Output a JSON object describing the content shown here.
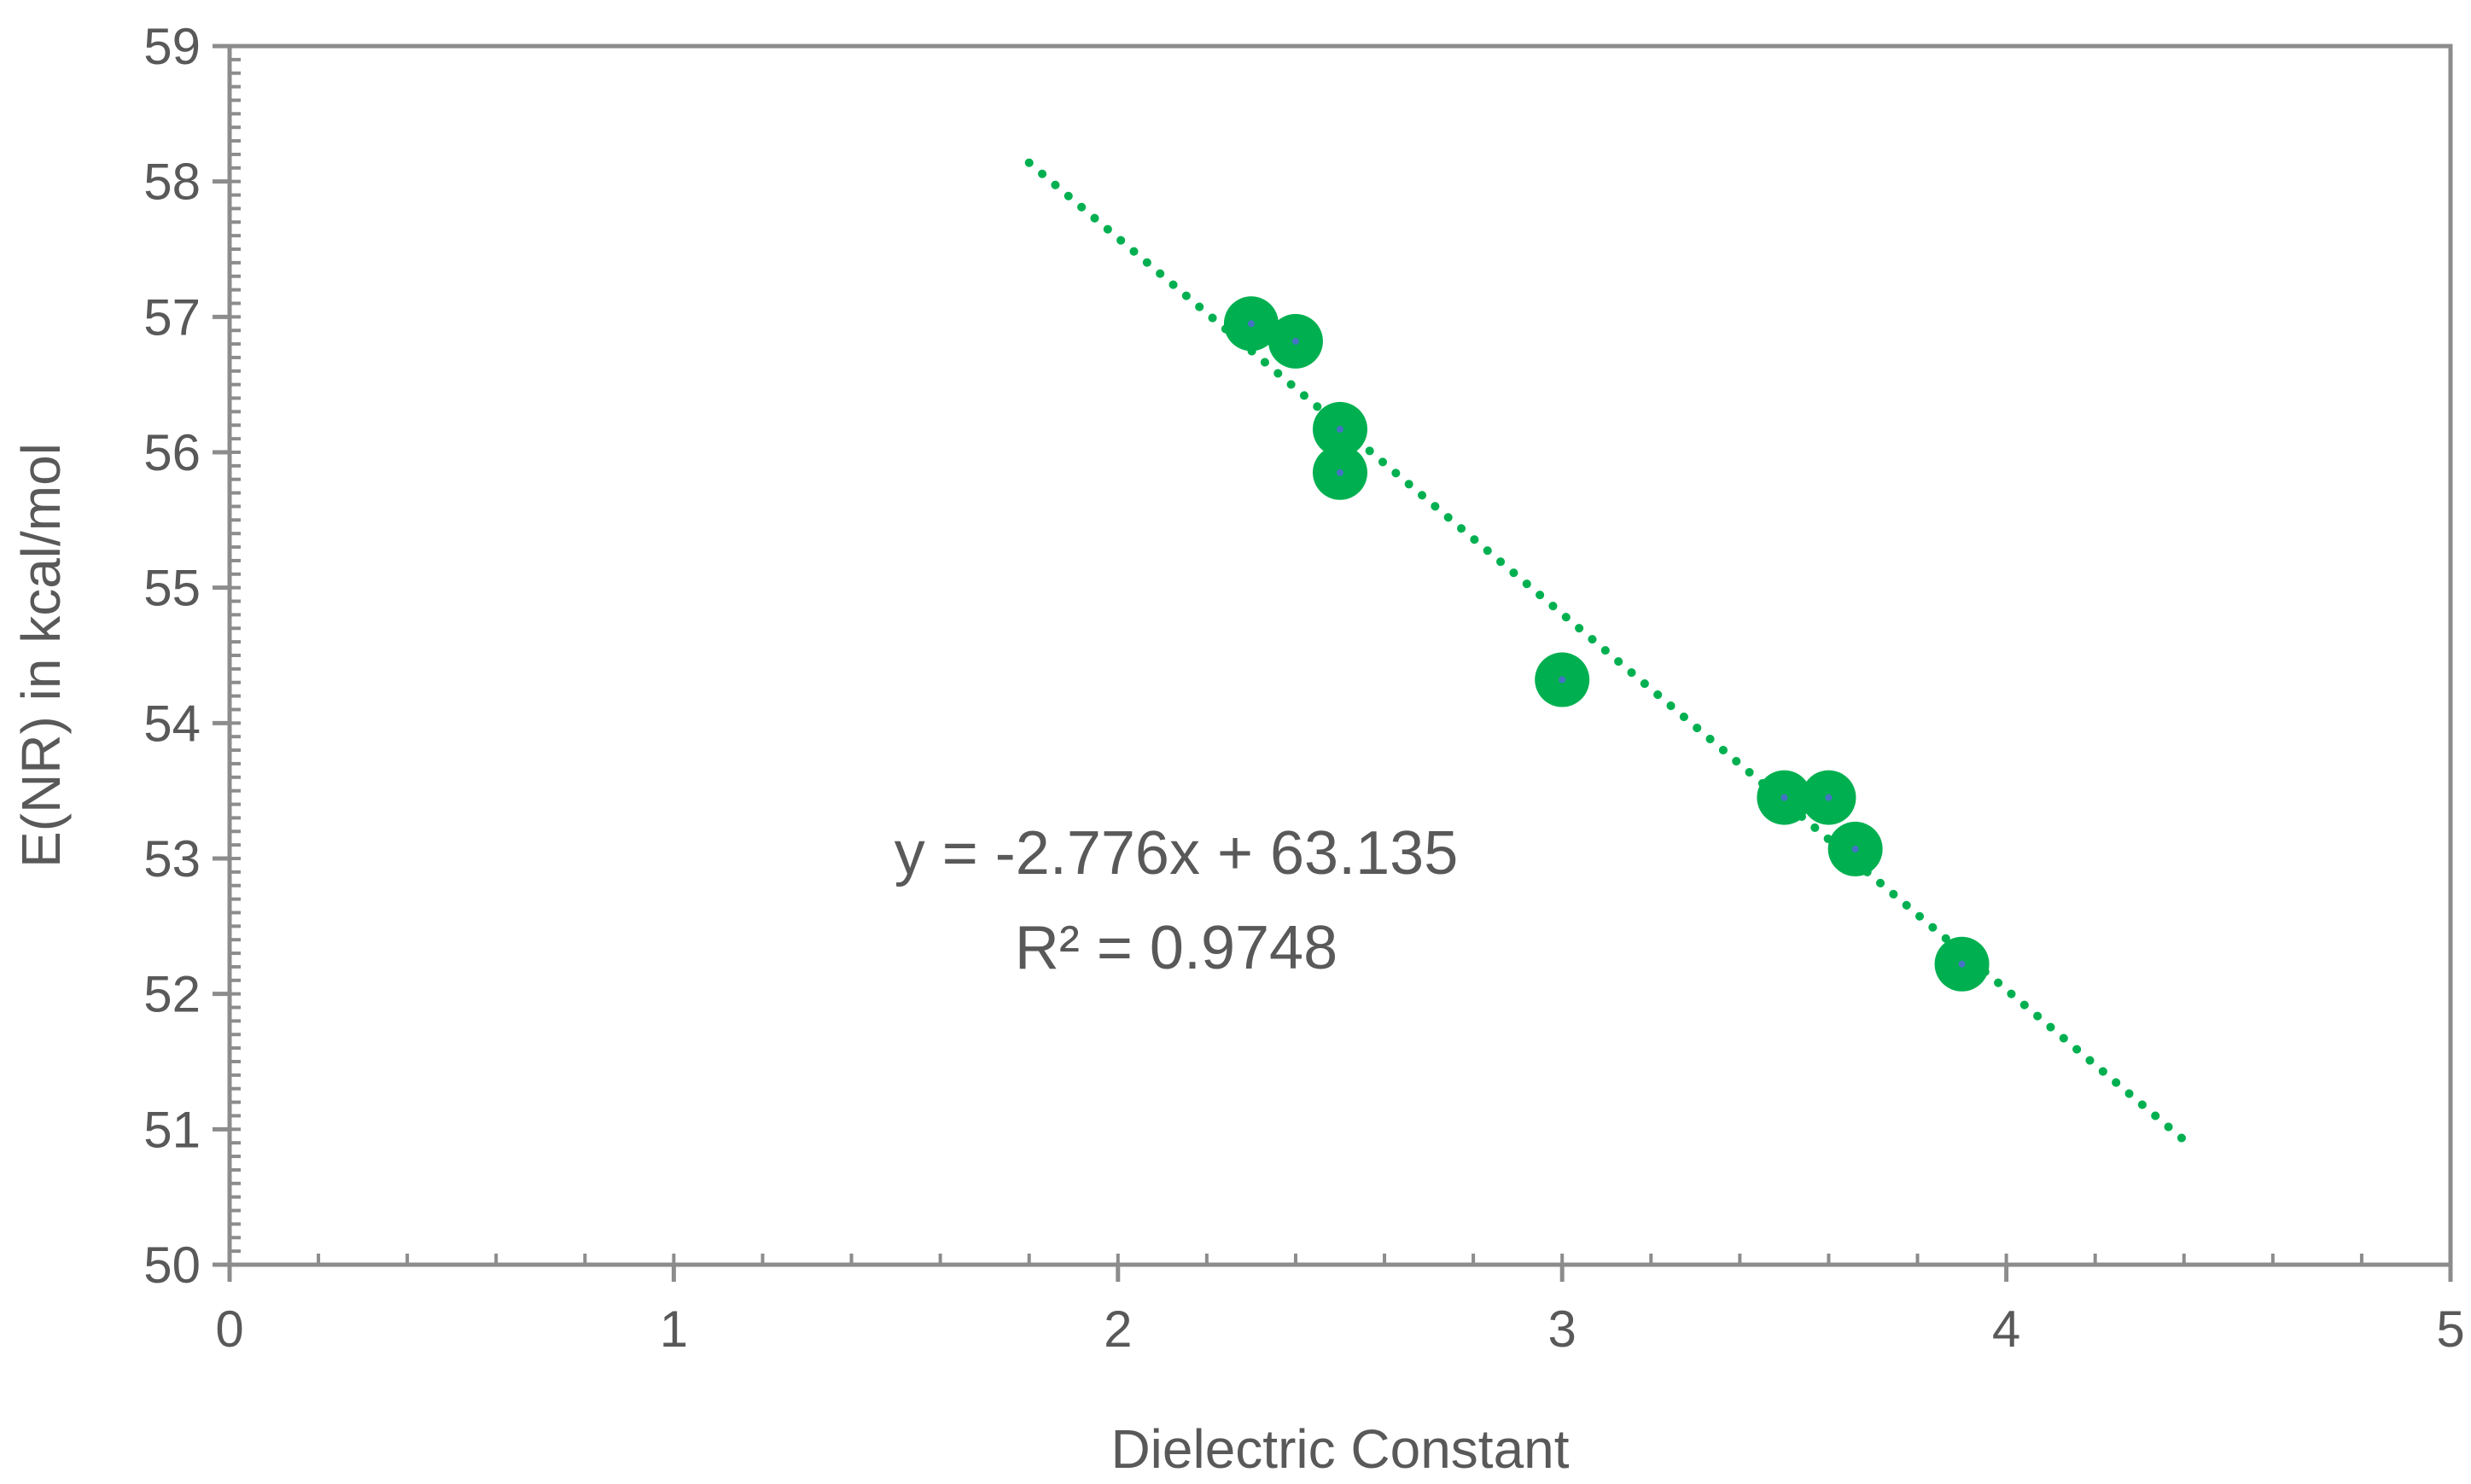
{
  "chart_data": {
    "type": "scatter",
    "title": "",
    "xlabel": "Dielectric Constant",
    "ylabel": "E(NR) in kcal/mol",
    "xlim": [
      0,
      5
    ],
    "ylim": [
      50,
      59
    ],
    "x_ticks": [
      "0",
      "1",
      "2",
      "3",
      "4",
      "5"
    ],
    "y_ticks": [
      "50",
      "51",
      "52",
      "53",
      "54",
      "55",
      "56",
      "57",
      "58",
      "59"
    ],
    "grid": false,
    "legend": "none",
    "series": [
      {
        "points": [
          {
            "x": 2.3,
            "y": 56.95
          },
          {
            "x": 2.4,
            "y": 56.82
          },
          {
            "x": 2.5,
            "y": 56.17
          },
          {
            "x": 2.5,
            "y": 55.85
          },
          {
            "x": 3.0,
            "y": 54.32
          },
          {
            "x": 3.5,
            "y": 53.45
          },
          {
            "x": 3.6,
            "y": 53.45
          },
          {
            "x": 3.66,
            "y": 53.07
          },
          {
            "x": 3.9,
            "y": 52.22
          }
        ],
        "marker_color": "#00b050",
        "center_color": "#4472c4"
      }
    ],
    "trendline": {
      "type": "linear",
      "style": "dotted",
      "color": "#00b050",
      "slope": -2.776,
      "intercept": 63.135,
      "x_range": [
        1.8,
        4.4
      ],
      "equation_label": "y = -2.776x + 63.135",
      "r2_label": "R² = 0.9748"
    }
  }
}
